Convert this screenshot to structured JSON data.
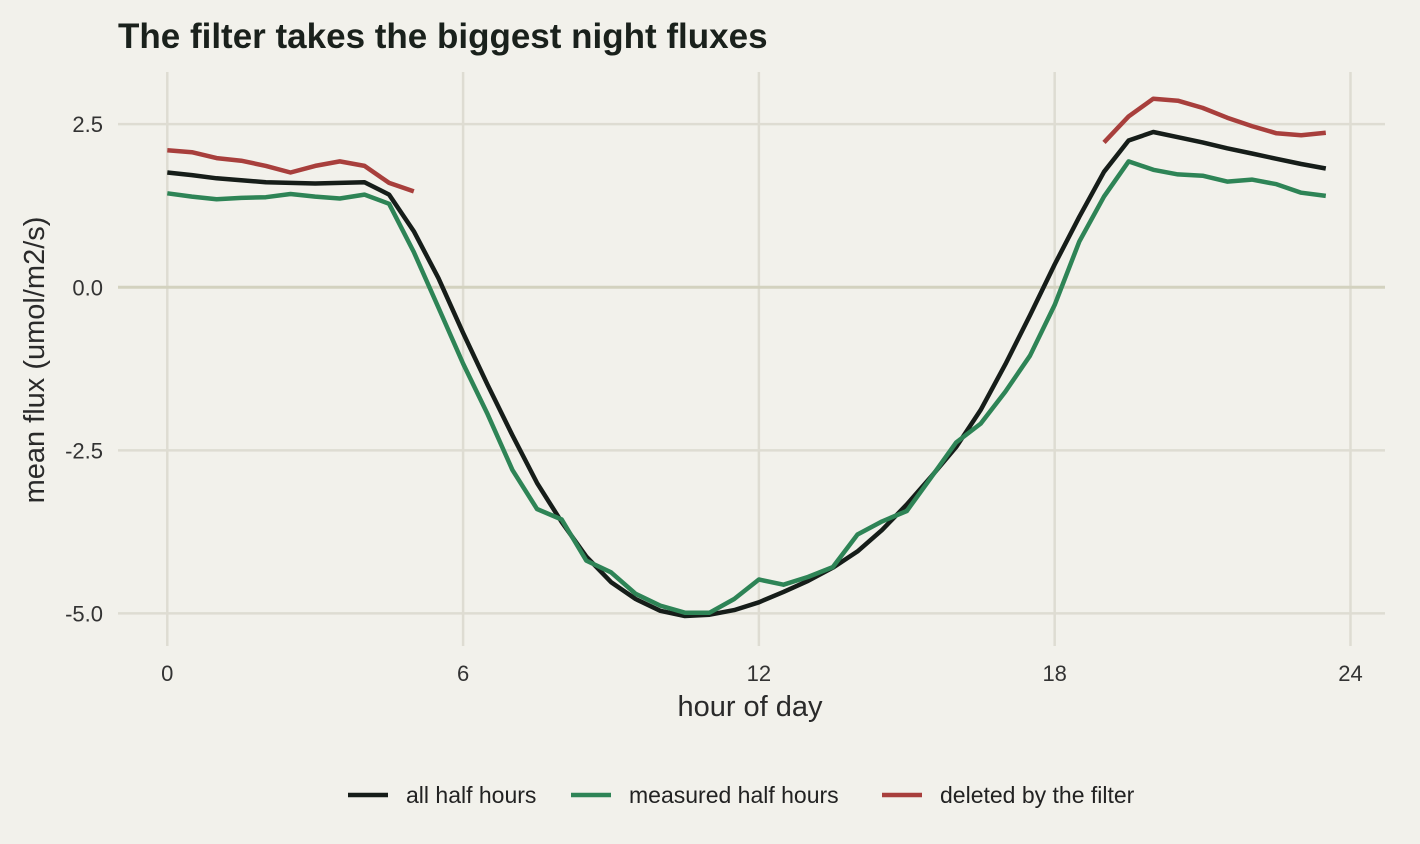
{
  "chart_data": {
    "type": "line",
    "title": "The filter takes the biggest night fluxes",
    "xlabel": "hour of day",
    "ylabel": "mean flux (umol/m2/s)",
    "xlim": [
      -1,
      24.7
    ],
    "ylim": [
      -5.5,
      3.3
    ],
    "xticks": [
      0,
      6,
      12,
      18,
      24
    ],
    "xtick_labels": [
      "0",
      "6",
      "12",
      "18",
      "24"
    ],
    "yticks": [
      2.5,
      0.0,
      -2.5,
      -5.0
    ],
    "ytick_labels": [
      "2.5",
      "0.0",
      "-2.5",
      "-5.0"
    ],
    "grid": true,
    "legend_position": "bottom",
    "series": [
      {
        "name": "all half hours",
        "color": "#161d19",
        "x": [
          0,
          0.5,
          1,
          1.5,
          2,
          2.5,
          3,
          3.5,
          4,
          4.5,
          5,
          5.5,
          6,
          6.5,
          7,
          7.5,
          8,
          8.5,
          9,
          9.5,
          10,
          10.5,
          11,
          11.5,
          12,
          12.5,
          13,
          13.5,
          14,
          14.5,
          15,
          15.5,
          16,
          16.5,
          17,
          17.5,
          18,
          18.5,
          19,
          19.5,
          20,
          20.5,
          21,
          21.5,
          22,
          22.5,
          23,
          23.5
        ],
        "y": [
          1.76,
          1.72,
          1.67,
          1.64,
          1.61,
          1.6,
          1.59,
          1.6,
          1.61,
          1.42,
          0.86,
          0.14,
          -0.7,
          -1.5,
          -2.27,
          -3.0,
          -3.6,
          -4.13,
          -4.52,
          -4.78,
          -4.96,
          -5.04,
          -5.02,
          -4.95,
          -4.83,
          -4.67,
          -4.5,
          -4.3,
          -4.05,
          -3.72,
          -3.33,
          -2.9,
          -2.45,
          -1.88,
          -1.18,
          -0.43,
          0.35,
          1.08,
          1.77,
          2.25,
          2.38,
          2.3,
          2.22,
          2.13,
          2.05,
          1.97,
          1.89,
          1.82
        ]
      },
      {
        "name": "measured half hours",
        "color": "#2e8456",
        "x": [
          0,
          0.5,
          1,
          1.5,
          2,
          2.5,
          3,
          3.5,
          4,
          4.5,
          5,
          5.5,
          6,
          6.5,
          7,
          7.5,
          8,
          8.5,
          9,
          9.5,
          10,
          10.5,
          11,
          11.5,
          12,
          12.5,
          13,
          13.5,
          14,
          14.5,
          15,
          15.5,
          16,
          16.5,
          17,
          17.5,
          18,
          18.5,
          19,
          19.5,
          20,
          20.5,
          21,
          21.5,
          22,
          22.5,
          23,
          23.5
        ],
        "y": [
          1.44,
          1.39,
          1.35,
          1.37,
          1.38,
          1.43,
          1.39,
          1.36,
          1.42,
          1.28,
          0.54,
          -0.31,
          -1.17,
          -1.95,
          -2.8,
          -3.4,
          -3.56,
          -4.19,
          -4.37,
          -4.7,
          -4.88,
          -4.99,
          -4.99,
          -4.78,
          -4.48,
          -4.56,
          -4.44,
          -4.29,
          -3.79,
          -3.59,
          -3.43,
          -2.91,
          -2.38,
          -2.09,
          -1.6,
          -1.05,
          -0.27,
          0.7,
          1.39,
          1.93,
          1.8,
          1.73,
          1.71,
          1.62,
          1.65,
          1.58,
          1.45,
          1.4
        ]
      },
      {
        "name": "deleted by the filter",
        "color": "#a83f3c",
        "x": [
          0,
          0.5,
          1,
          1.5,
          2,
          2.5,
          3,
          3.5,
          4,
          4.5,
          5,
          19,
          19.5,
          20,
          20.5,
          21,
          21.5,
          22,
          22.5,
          23,
          23.5
        ],
        "y": [
          2.1,
          2.07,
          1.98,
          1.94,
          1.86,
          1.76,
          1.86,
          1.93,
          1.86,
          1.6,
          1.47,
          2.22,
          2.62,
          2.89,
          2.86,
          2.75,
          2.6,
          2.47,
          2.36,
          2.33,
          2.37
        ],
        "segments": [
          [
            0,
            10
          ],
          [
            11,
            20
          ]
        ]
      }
    ]
  }
}
